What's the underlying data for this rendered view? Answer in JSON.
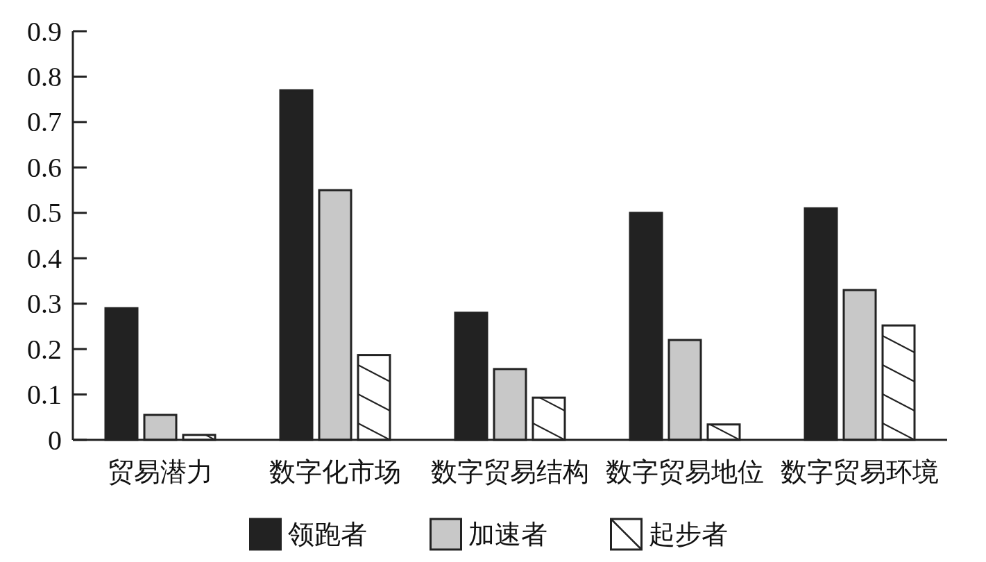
{
  "chart_data": {
    "type": "bar",
    "categories": [
      "贸易潜力",
      "数字化市场",
      "数字贸易结构",
      "数字贸易地位",
      "数字贸易环境"
    ],
    "series": [
      {
        "name": "领跑者",
        "color": "#222222",
        "values": [
          0.29,
          0.77,
          0.28,
          0.5,
          0.51
        ]
      },
      {
        "name": "加速者",
        "color": "#c8c8c8",
        "values": [
          0.055,
          0.55,
          0.156,
          0.22,
          0.33
        ]
      },
      {
        "name": "起步者",
        "color": "#ffffff",
        "values": [
          0.011,
          0.187,
          0.093,
          0.034,
          0.252
        ]
      }
    ],
    "ylim": [
      0,
      0.9
    ],
    "yticks": [
      0,
      0.1,
      0.2,
      0.3,
      0.4,
      0.5,
      0.6,
      0.7,
      0.8,
      0.9
    ],
    "legend": "bottom"
  }
}
